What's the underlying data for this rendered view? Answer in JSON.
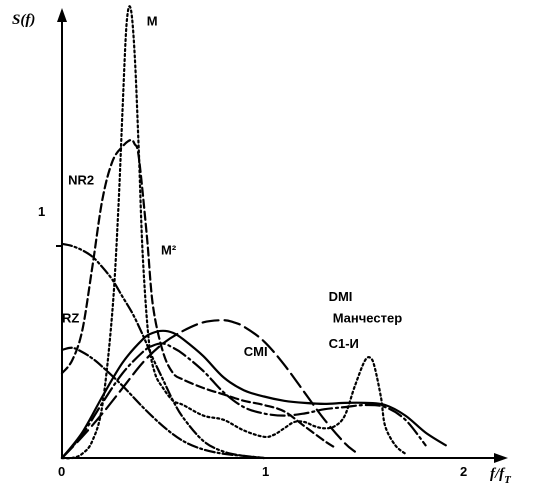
{
  "chart_data": {
    "type": "line",
    "title": "",
    "ylabel": "S(f)",
    "xlabel_main": "f/f",
    "xlabel_sub": "T",
    "xlim": [
      0,
      2.1
    ],
    "ylim": [
      0,
      2.15
    ],
    "x_ticks": [
      "0",
      "1",
      "2"
    ],
    "y_ticks": [
      "1"
    ],
    "grid": false,
    "series": [
      {
        "name": "M",
        "dash": "2 3",
        "x": [
          0,
          0.05,
          0.1,
          0.15,
          0.2,
          0.25,
          0.28,
          0.3,
          0.32,
          0.34,
          0.36,
          0.38,
          0.4,
          0.43,
          0.46,
          0.5,
          0.55,
          0.6,
          0.7,
          0.8,
          0.9,
          1.0,
          1.05,
          1.1,
          1.15,
          1.2,
          1.25,
          1.3,
          1.35,
          1.4,
          1.45,
          1.5,
          1.53,
          1.55,
          1.58,
          1.6,
          1.65,
          1.7
        ],
        "y": [
          0.0,
          0.0,
          0.02,
          0.08,
          0.25,
          0.7,
          1.2,
          1.65,
          2.05,
          2.12,
          1.9,
          1.45,
          0.95,
          0.55,
          0.4,
          0.33,
          0.27,
          0.25,
          0.2,
          0.18,
          0.13,
          0.1,
          0.11,
          0.14,
          0.17,
          0.17,
          0.15,
          0.14,
          0.15,
          0.2,
          0.34,
          0.46,
          0.47,
          0.42,
          0.28,
          0.15,
          0.06,
          0.02
        ]
      },
      {
        "name": "M²",
        "dash": "8 4",
        "x": [
          0,
          0.05,
          0.1,
          0.15,
          0.2,
          0.25,
          0.3,
          0.34,
          0.36,
          0.38,
          0.42,
          0.45,
          0.5,
          0.55,
          0.6,
          0.7,
          0.8,
          0.9,
          1.0,
          1.1,
          1.2,
          1.3,
          1.35
        ],
        "y": [
          0.4,
          0.46,
          0.6,
          0.9,
          1.22,
          1.4,
          1.47,
          1.5,
          1.48,
          1.42,
          1.05,
          0.72,
          0.5,
          0.4,
          0.37,
          0.33,
          0.3,
          0.27,
          0.25,
          0.22,
          0.15,
          0.08,
          0.05
        ]
      },
      {
        "name": "NR2",
        "dash": "10 3 2 3 2 3",
        "x": [
          0,
          0.05,
          0.1,
          0.15,
          0.2,
          0.25,
          0.3,
          0.35,
          0.4,
          0.45,
          0.5,
          0.55,
          0.6,
          0.7,
          0.8,
          0.9,
          1.0
        ],
        "y": [
          1.01,
          1.0,
          0.98,
          0.95,
          0.9,
          0.84,
          0.76,
          0.68,
          0.58,
          0.47,
          0.37,
          0.27,
          0.19,
          0.08,
          0.03,
          0.01,
          0.0
        ]
      },
      {
        "name": "RZ",
        "dash": "10 3 2 3",
        "x": [
          0,
          0.05,
          0.1,
          0.15,
          0.2,
          0.3,
          0.4,
          0.5,
          0.6,
          0.7,
          0.8,
          0.9,
          1.0
        ],
        "y": [
          0.51,
          0.52,
          0.5,
          0.47,
          0.43,
          0.34,
          0.24,
          0.15,
          0.08,
          0.04,
          0.02,
          0.01,
          0.0
        ]
      },
      {
        "name": "CMI",
        "dash": "",
        "x": [
          0,
          0.1,
          0.2,
          0.3,
          0.4,
          0.45,
          0.5,
          0.55,
          0.6,
          0.7,
          0.8,
          0.9,
          1.0,
          1.1,
          1.2,
          1.3,
          1.4,
          1.5,
          1.6,
          1.7,
          1.8,
          1.9
        ],
        "y": [
          0.0,
          0.12,
          0.29,
          0.45,
          0.56,
          0.59,
          0.6,
          0.59,
          0.56,
          0.48,
          0.38,
          0.32,
          0.29,
          0.27,
          0.26,
          0.255,
          0.26,
          0.26,
          0.25,
          0.2,
          0.12,
          0.06
        ]
      },
      {
        "name": "DMI",
        "dash": "16 6",
        "x": [
          0,
          0.1,
          0.2,
          0.3,
          0.4,
          0.5,
          0.6,
          0.7,
          0.8,
          0.85,
          0.9,
          1.0,
          1.1,
          1.2,
          1.3,
          1.4,
          1.45
        ],
        "y": [
          0.0,
          0.1,
          0.21,
          0.33,
          0.45,
          0.54,
          0.6,
          0.64,
          0.65,
          0.64,
          0.62,
          0.55,
          0.44,
          0.31,
          0.18,
          0.07,
          0.03
        ]
      },
      {
        "name": "C1-И",
        "dash": "14 4 2 4",
        "x": [
          0,
          0.1,
          0.2,
          0.3,
          0.4,
          0.45,
          0.5,
          0.55,
          0.6,
          0.7,
          0.8,
          0.9,
          1.0,
          1.1,
          1.2,
          1.3,
          1.4,
          1.5,
          1.6,
          1.7,
          1.8
        ],
        "y": [
          0.0,
          0.11,
          0.26,
          0.4,
          0.5,
          0.53,
          0.54,
          0.52,
          0.49,
          0.41,
          0.31,
          0.24,
          0.21,
          0.2,
          0.21,
          0.23,
          0.24,
          0.25,
          0.24,
          0.18,
          0.06
        ]
      }
    ],
    "annotations": [
      {
        "name": "label-m",
        "text": "M",
        "x": 0.42,
        "y": 2.04
      },
      {
        "name": "label-nr2",
        "text": "NR2",
        "x": 0.03,
        "y": 1.29
      },
      {
        "name": "label-m2",
        "text": "M²",
        "x": 0.49,
        "y": 0.96
      },
      {
        "name": "label-rz",
        "text": "RZ",
        "x": 0.0,
        "y": 0.64
      },
      {
        "name": "label-cmi",
        "text": "CMI",
        "x": 0.9,
        "y": 0.48
      },
      {
        "name": "label-dmi",
        "text": "DMI",
        "x": 1.32,
        "y": 0.74
      },
      {
        "name": "label-manchester",
        "text": "Манчестер",
        "x": 1.34,
        "y": 0.64
      },
      {
        "name": "label-c1i",
        "text": "C1-И",
        "x": 1.32,
        "y": 0.52
      }
    ]
  }
}
